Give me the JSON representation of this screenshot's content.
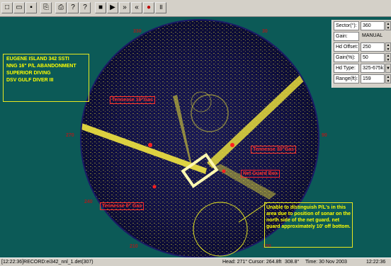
{
  "toolbar": {
    "buttons": [
      {
        "name": "new-file-icon",
        "glyph": "□"
      },
      {
        "name": "open-folder-icon",
        "glyph": "▭"
      },
      {
        "name": "save-icon",
        "glyph": "▪"
      },
      {
        "name": "copy-icon",
        "glyph": "⎘"
      },
      {
        "name": "print-icon",
        "glyph": "⎙"
      },
      {
        "name": "help-icon",
        "glyph": "?"
      },
      {
        "name": "context-help-icon",
        "glyph": "?"
      },
      {
        "name": "stop-icon",
        "glyph": "■"
      },
      {
        "name": "play-icon",
        "glyph": "▶"
      },
      {
        "name": "fast-forward-icon",
        "glyph": "»"
      },
      {
        "name": "rewind-icon",
        "glyph": "«"
      },
      {
        "name": "record-icon",
        "glyph": "●"
      },
      {
        "name": "pause-icon",
        "glyph": "॥"
      }
    ]
  },
  "panel": {
    "sector_label": "Sector(°):",
    "sector_value": "360",
    "gain_label": "Gain:",
    "gain_value": "MANUAL",
    "hd_offset_label": "Hd Offset:",
    "hd_offset_value": "250",
    "gain_pct_label": "Gain(%):",
    "gain_pct_value": "50",
    "hd_type_label": "Hd Type:",
    "hd_type_value": "325-675k",
    "range_label": "Range(ft):",
    "range_value": "159"
  },
  "info_box": [
    "EUGENE ISLAND 342 SSTI",
    "NNG 16\" P/L ABANDONMENT",
    "SUPERIOR DIVING",
    "DSV GULF DIVER III"
  ],
  "labels": {
    "tennessee_top": "Tennesse 16\"Gas",
    "tennessee_right": "Tennesse 30\"Gas",
    "net_guard": "Net Guard Box",
    "tennessee_bottom": "Tennesse 6\" Gas"
  },
  "bearings": {
    "b330": "330",
    "b30": "30",
    "b270": "270",
    "b90": "90",
    "b240": "240",
    "b210": "210",
    "b150": "150"
  },
  "note": "Unable to distinguish P/L's in this area due to position of sonar on the north side of the net guard. net guard approximately 10' off bottom.",
  "status": {
    "file": "[12:22:36]RECORD:ei342_nnl_1.det(307)",
    "head": "Head: 271°",
    "cursor": "Cursor: 264.8ft",
    "bearing": "308.8°",
    "time": "Time: 30 Nov 2003",
    "clock": "12:22:36"
  },
  "colors": {
    "background": "#0c5a57",
    "sonar": "#ffff00",
    "label_red": "#ff2a2a"
  }
}
